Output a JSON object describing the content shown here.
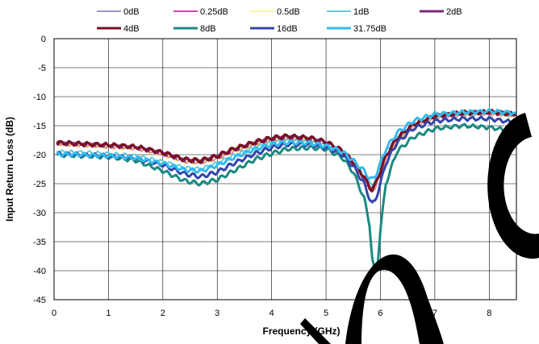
{
  "chart_data": {
    "type": "line",
    "title": "",
    "xlabel": "Frequency (GHz)",
    "ylabel": "Input Return Loss (dB)",
    "xlim": [
      0,
      8.5
    ],
    "ylim": [
      -45,
      0
    ],
    "xticks": [
      0,
      1,
      2,
      3,
      4,
      5,
      6,
      7,
      8
    ],
    "yticks": [
      0,
      -5,
      -10,
      -15,
      -20,
      -25,
      -30,
      -35,
      -40,
      -45
    ],
    "grid": true,
    "legend_position": "top",
    "series": [
      {
        "name": "0dB",
        "color": "#333399",
        "width": 1,
        "x": [
          0.05,
          0.5,
          1.0,
          1.5,
          2.0,
          2.4,
          2.7,
          3.0,
          3.3,
          3.7,
          4.0,
          4.3,
          4.7,
          5.0,
          5.3,
          5.5,
          5.7,
          5.8,
          5.85,
          5.9,
          6.0,
          6.1,
          6.3,
          6.6,
          7.0,
          7.5,
          8.0,
          8.5
        ],
        "y": [
          -18.0,
          -18.2,
          -18.5,
          -18.8,
          -19.8,
          -21.0,
          -21.2,
          -20.5,
          -19.3,
          -18.0,
          -17.3,
          -17.0,
          -17.3,
          -18.0,
          -19.5,
          -21.5,
          -24.0,
          -25.8,
          -26.0,
          -25.5,
          -23.0,
          -20.5,
          -17.5,
          -15.0,
          -13.5,
          -13.0,
          -12.8,
          -13.2
        ]
      },
      {
        "name": "0.25dB",
        "color": "#cc44aa",
        "width": 2,
        "x": [
          0.05,
          0.5,
          1.0,
          1.5,
          2.0,
          2.4,
          2.7,
          3.0,
          3.3,
          3.7,
          4.0,
          4.3,
          4.7,
          5.0,
          5.3,
          5.5,
          5.7,
          5.8,
          5.85,
          5.9,
          6.0,
          6.1,
          6.3,
          6.6,
          7.0,
          7.5,
          8.0,
          8.5
        ],
        "y": [
          -18.1,
          -18.3,
          -18.6,
          -18.9,
          -19.9,
          -21.1,
          -21.3,
          -20.6,
          -19.4,
          -18.1,
          -17.4,
          -17.1,
          -17.4,
          -18.1,
          -19.6,
          -21.6,
          -24.1,
          -25.9,
          -26.1,
          -25.6,
          -23.1,
          -20.6,
          -17.6,
          -15.1,
          -13.6,
          -13.1,
          -12.9,
          -13.3
        ]
      },
      {
        "name": "0.5dB",
        "color": "#ffee33",
        "width": 1,
        "x": [
          0.05,
          0.5,
          1.0,
          1.5,
          2.0,
          2.4,
          2.7,
          3.0,
          3.3,
          3.7,
          4.0,
          4.3,
          4.7,
          5.0,
          5.3,
          5.5,
          5.7,
          5.8,
          5.85,
          5.9,
          6.0,
          6.1,
          6.3,
          6.6,
          7.0,
          7.5,
          8.0,
          8.5
        ],
        "y": [
          -18.2,
          -18.4,
          -18.7,
          -19.0,
          -20.0,
          -21.2,
          -21.4,
          -20.7,
          -19.5,
          -18.2,
          -17.5,
          -17.2,
          -17.5,
          -18.2,
          -19.7,
          -21.7,
          -24.2,
          -26.0,
          -26.2,
          -25.7,
          -23.2,
          -20.7,
          -17.7,
          -15.2,
          -13.7,
          -13.2,
          -13.0,
          -13.4
        ]
      },
      {
        "name": "1dB",
        "color": "#66ccdd",
        "width": 2,
        "x": [
          0.05,
          0.5,
          1.0,
          1.5,
          2.0,
          2.4,
          2.7,
          3.0,
          3.3,
          3.7,
          4.0,
          4.3,
          4.7,
          5.0,
          5.3,
          5.5,
          5.7,
          5.8,
          5.85,
          5.9,
          6.0,
          6.1,
          6.3,
          6.6,
          7.0,
          7.5,
          8.0,
          8.5
        ],
        "y": [
          -19.5,
          -19.6,
          -19.8,
          -20.2,
          -21.2,
          -22.3,
          -22.5,
          -21.5,
          -20.2,
          -18.8,
          -18.0,
          -17.7,
          -17.9,
          -18.5,
          -19.8,
          -21.5,
          -23.5,
          -24.8,
          -25.0,
          -24.5,
          -22.0,
          -19.5,
          -17.0,
          -14.8,
          -13.5,
          -13.0,
          -12.8,
          -13.2
        ]
      },
      {
        "name": "2dB",
        "color": "#7a2a7a",
        "width": 3,
        "x": [
          0.05,
          0.5,
          1.0,
          1.5,
          2.0,
          2.4,
          2.7,
          3.0,
          3.3,
          3.7,
          4.0,
          4.3,
          4.7,
          5.0,
          5.3,
          5.5,
          5.7,
          5.8,
          5.85,
          5.9,
          6.0,
          6.1,
          6.3,
          6.6,
          7.0,
          7.5,
          8.0,
          8.5
        ],
        "y": [
          -18.0,
          -18.2,
          -18.4,
          -18.7,
          -19.7,
          -20.9,
          -21.1,
          -20.3,
          -19.1,
          -17.9,
          -17.2,
          -16.9,
          -17.2,
          -17.9,
          -19.4,
          -21.4,
          -23.9,
          -25.7,
          -26.0,
          -25.4,
          -22.9,
          -20.3,
          -17.3,
          -14.9,
          -13.4,
          -12.9,
          -12.7,
          -13.1
        ]
      },
      {
        "name": "4dB",
        "color": "#7a1020",
        "width": 3,
        "x": [
          0.05,
          0.5,
          1.0,
          1.5,
          2.0,
          2.4,
          2.7,
          3.0,
          3.3,
          3.7,
          4.0,
          4.3,
          4.7,
          5.0,
          5.3,
          5.5,
          5.7,
          5.8,
          5.85,
          5.9,
          6.0,
          6.1,
          6.3,
          6.6,
          7.0,
          7.5,
          8.0,
          8.5
        ],
        "y": [
          -17.9,
          -18.1,
          -18.3,
          -18.6,
          -19.6,
          -20.8,
          -21.0,
          -20.2,
          -19.0,
          -17.8,
          -17.1,
          -16.8,
          -17.1,
          -17.8,
          -19.3,
          -21.3,
          -23.8,
          -25.6,
          -25.9,
          -25.3,
          -22.8,
          -20.2,
          -17.2,
          -14.8,
          -13.3,
          -12.8,
          -12.6,
          -13.0
        ]
      },
      {
        "name": "8dB",
        "color": "#1a8a80",
        "width": 3,
        "x": [
          0.05,
          0.5,
          1.0,
          1.5,
          2.0,
          2.4,
          2.7,
          3.0,
          3.3,
          3.7,
          4.0,
          4.3,
          4.7,
          5.0,
          5.3,
          5.5,
          5.7,
          5.8,
          5.85,
          5.9,
          5.95,
          6.0,
          6.1,
          6.3,
          6.6,
          7.0,
          7.5,
          8.0,
          8.5
        ],
        "y": [
          -20.0,
          -20.2,
          -20.4,
          -21.0,
          -22.8,
          -24.5,
          -25.0,
          -24.3,
          -22.8,
          -20.8,
          -19.8,
          -19.0,
          -18.8,
          -19.0,
          -20.5,
          -23.0,
          -27.5,
          -32.0,
          -38.0,
          -40.5,
          -38.5,
          -33.0,
          -25.0,
          -19.5,
          -17.0,
          -15.5,
          -15.0,
          -15.3,
          -16.0
        ]
      },
      {
        "name": "16dB",
        "color": "#3344aa",
        "width": 3,
        "x": [
          0.05,
          0.5,
          1.0,
          1.5,
          2.0,
          2.4,
          2.7,
          3.0,
          3.3,
          3.7,
          4.0,
          4.3,
          4.7,
          5.0,
          5.3,
          5.5,
          5.7,
          5.8,
          5.85,
          5.9,
          6.0,
          6.1,
          6.3,
          6.6,
          7.0,
          7.5,
          8.0,
          8.5
        ],
        "y": [
          -19.8,
          -20.0,
          -20.2,
          -20.6,
          -21.8,
          -23.3,
          -23.8,
          -23.0,
          -21.5,
          -19.8,
          -18.8,
          -18.2,
          -18.2,
          -18.7,
          -20.0,
          -22.0,
          -25.0,
          -27.5,
          -28.5,
          -28.0,
          -25.0,
          -21.5,
          -18.0,
          -15.5,
          -14.2,
          -13.8,
          -13.8,
          -14.5
        ]
      },
      {
        "name": "31.75dB",
        "color": "#33bbee",
        "width": 3,
        "x": [
          0.05,
          0.5,
          1.0,
          1.5,
          2.0,
          2.4,
          2.7,
          3.0,
          3.3,
          3.7,
          4.0,
          4.3,
          4.7,
          5.0,
          5.3,
          5.5,
          5.7,
          5.8,
          5.85,
          5.9,
          6.0,
          6.1,
          6.3,
          6.6,
          7.0,
          7.5,
          8.0,
          8.5
        ],
        "y": [
          -19.9,
          -20.0,
          -20.2,
          -20.6,
          -21.5,
          -22.6,
          -22.8,
          -21.8,
          -20.5,
          -19.0,
          -18.2,
          -17.9,
          -18.0,
          -18.5,
          -19.5,
          -21.0,
          -22.8,
          -24.0,
          -24.3,
          -23.8,
          -21.5,
          -19.0,
          -16.3,
          -14.2,
          -13.0,
          -12.7,
          -12.5,
          -12.8
        ]
      }
    ]
  }
}
